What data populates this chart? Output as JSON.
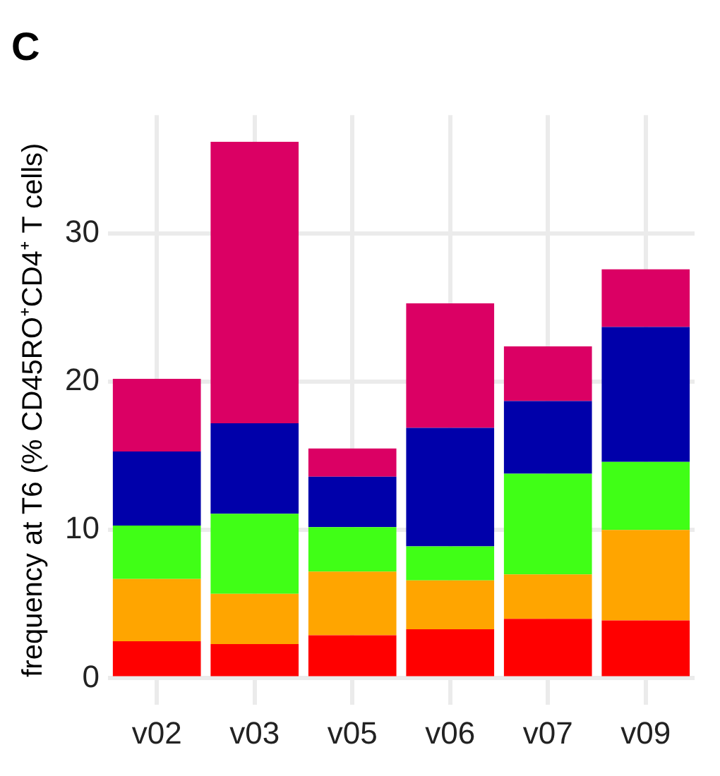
{
  "chart_data": {
    "type": "bar",
    "title": "C",
    "ylabel": "frequency at T6 (% CD45RO⁺CD4⁺ T cells)",
    "categories": [
      "v02",
      "v03",
      "v05",
      "v06",
      "v07",
      "v09"
    ],
    "stacked": true,
    "grid": true,
    "ylim": [
      -1.8,
      38
    ],
    "yticks": [
      0,
      10,
      20,
      30
    ],
    "series": [
      {
        "color": "#ff0000",
        "values": [
          2.5,
          2.3,
          2.9,
          3.3,
          4.0,
          3.9
        ]
      },
      {
        "color": "#ffa500",
        "values": [
          4.2,
          3.4,
          4.3,
          3.3,
          3.0,
          6.1
        ]
      },
      {
        "color": "#40ff16",
        "values": [
          3.6,
          5.4,
          3.0,
          2.3,
          6.8,
          4.6
        ]
      },
      {
        "color": "#0000aa",
        "values": [
          5.0,
          6.1,
          3.4,
          8.0,
          4.9,
          9.1
        ]
      },
      {
        "color": "#db0064",
        "values": [
          4.9,
          19.0,
          1.9,
          8.4,
          3.7,
          3.9
        ]
      }
    ]
  }
}
